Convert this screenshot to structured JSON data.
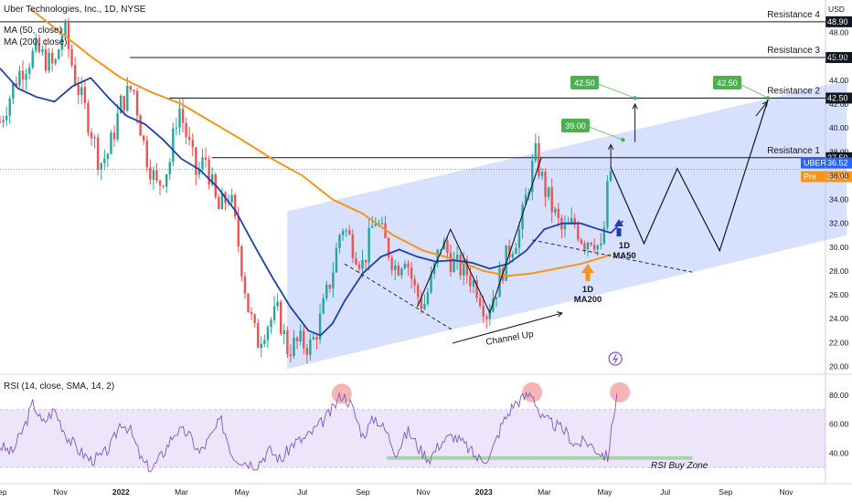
{
  "header": {
    "title": "Uber Technologies, Inc., 1D, NYSE",
    "ma50_label": "MA (50, close)",
    "ma200_label": "MA (200, close)",
    "currency": "USD"
  },
  "chart_data": {
    "type": "candlestick",
    "grid": false,
    "price_axis": {
      "ticks": [
        20.0,
        22.0,
        24.0,
        26.0,
        28.0,
        30.0,
        32.0,
        34.0,
        36.0,
        38.0,
        40.0,
        42.0,
        44.0,
        46.0,
        48.0
      ],
      "tick_labels": [
        "20.00",
        "22.00",
        "24.00",
        "26.00",
        "28.00",
        "30.00",
        "32.00",
        "34.00",
        "36.00",
        "38.00",
        "40.00",
        "42.00",
        "44.00",
        "46.00",
        "48.00"
      ],
      "ylim": [
        19.5,
        49.5
      ]
    },
    "rsi_axis": {
      "ticks": [
        40,
        60,
        80
      ],
      "tick_labels": [
        "40.00",
        "60.00",
        "80.00"
      ],
      "ylim": [
        25,
        92
      ]
    },
    "x_axis": {
      "labels": [
        "Sep",
        "Nov",
        "2022",
        "Mar",
        "May",
        "Jul",
        "Sep",
        "Nov",
        "2023",
        "Mar",
        "May",
        "Jul",
        "Sep",
        "Nov"
      ],
      "months": [
        0,
        2,
        4,
        6,
        8,
        10,
        12,
        14,
        16,
        18,
        20,
        22,
        24,
        26
      ],
      "xlim": [
        0,
        27.3
      ]
    },
    "price_path": [
      [
        0.0,
        40.5
      ],
      [
        0.6,
        44.5
      ],
      [
        1.2,
        46.5
      ],
      [
        1.8,
        45.0
      ],
      [
        2.1,
        48.5
      ],
      [
        2.5,
        44.0
      ],
      [
        3.0,
        40.0
      ],
      [
        3.3,
        37.0
      ],
      [
        3.6,
        38.0
      ],
      [
        4.0,
        42.0
      ],
      [
        4.4,
        43.5
      ],
      [
        4.8,
        38.0
      ],
      [
        5.2,
        35.0
      ],
      [
        5.6,
        37.0
      ],
      [
        5.9,
        42.0
      ],
      [
        6.2,
        39.0
      ],
      [
        6.5,
        36.0
      ],
      [
        6.8,
        37.5
      ],
      [
        7.2,
        33.0
      ],
      [
        7.6,
        34.5
      ],
      [
        7.9,
        30.0
      ],
      [
        8.2,
        25.0
      ],
      [
        8.5,
        22.0
      ],
      [
        8.8,
        23.5
      ],
      [
        9.2,
        24.5
      ],
      [
        9.5,
        21.5
      ],
      [
        9.9,
        22.0
      ],
      [
        10.3,
        21.7
      ],
      [
        10.6,
        24.0
      ],
      [
        11.0,
        28.0
      ],
      [
        11.3,
        32.0
      ],
      [
        11.6,
        30.5
      ],
      [
        12.0,
        28.5
      ],
      [
        12.4,
        32.5
      ],
      [
        12.8,
        30.0
      ],
      [
        13.1,
        28.2
      ],
      [
        13.4,
        29.5
      ],
      [
        13.7,
        26.5
      ],
      [
        14.0,
        25.0
      ],
      [
        14.3,
        27.5
      ],
      [
        14.6,
        30.5
      ],
      [
        15.0,
        28.5
      ],
      [
        15.4,
        28.0
      ],
      [
        15.8,
        26.5
      ],
      [
        16.1,
        24.5
      ],
      [
        16.4,
        26.5
      ],
      [
        16.8,
        29.5
      ],
      [
        17.2,
        31.5
      ],
      [
        17.5,
        35.5
      ],
      [
        17.7,
        37.8
      ],
      [
        18.0,
        35.0
      ],
      [
        18.3,
        33.0
      ],
      [
        18.6,
        31.2
      ],
      [
        19.0,
        32.0
      ],
      [
        19.3,
        30.5
      ],
      [
        19.6,
        31.0
      ],
      [
        19.9,
        29.4
      ],
      [
        20.1,
        35.0
      ],
      [
        20.2,
        36.5
      ]
    ],
    "ma50_path": [
      [
        0.0,
        45.0
      ],
      [
        0.6,
        43.3
      ],
      [
        1.2,
        42.6
      ],
      [
        1.8,
        42.2
      ],
      [
        2.4,
        43.5
      ],
      [
        3.0,
        44.2
      ],
      [
        3.6,
        42.5
      ],
      [
        4.2,
        41.0
      ],
      [
        4.8,
        40.3
      ],
      [
        5.4,
        39.0
      ],
      [
        6.0,
        37.4
      ],
      [
        6.6,
        36.5
      ],
      [
        7.2,
        35.0
      ],
      [
        7.8,
        33.0
      ],
      [
        8.4,
        30.2
      ],
      [
        9.0,
        27.5
      ],
      [
        9.6,
        25.0
      ],
      [
        10.2,
        23.0
      ],
      [
        10.6,
        22.6
      ],
      [
        11.0,
        23.6
      ],
      [
        11.4,
        25.5
      ],
      [
        12.0,
        27.8
      ],
      [
        12.6,
        29.2
      ],
      [
        13.2,
        29.8
      ],
      [
        13.8,
        29.2
      ],
      [
        14.4,
        28.8
      ],
      [
        15.0,
        28.9
      ],
      [
        15.6,
        28.7
      ],
      [
        16.2,
        28.2
      ],
      [
        16.8,
        28.6
      ],
      [
        17.4,
        29.7
      ],
      [
        18.0,
        31.5
      ],
      [
        18.6,
        32.0
      ],
      [
        19.2,
        32.0
      ],
      [
        19.8,
        31.5
      ],
      [
        20.2,
        31.2
      ],
      [
        20.6,
        32.2
      ]
    ],
    "ma200_path": [
      [
        1.0,
        50.0
      ],
      [
        2.0,
        48.0
      ],
      [
        3.0,
        46.0
      ],
      [
        4.0,
        44.2
      ],
      [
        5.0,
        43.0
      ],
      [
        6.0,
        42.0
      ],
      [
        7.0,
        40.5
      ],
      [
        8.0,
        39.0
      ],
      [
        9.0,
        37.4
      ],
      [
        10.0,
        36.0
      ],
      [
        11.0,
        34.0
      ],
      [
        12.0,
        32.8
      ],
      [
        13.0,
        31.0
      ],
      [
        14.0,
        29.7
      ],
      [
        15.0,
        29.0
      ],
      [
        16.0,
        28.0
      ],
      [
        16.8,
        27.6
      ],
      [
        17.6,
        27.8
      ],
      [
        18.4,
        28.2
      ],
      [
        19.2,
        28.6
      ],
      [
        20.0,
        29.2
      ],
      [
        20.2,
        29.4
      ]
    ],
    "rsi_path": [
      [
        0.0,
        45
      ],
      [
        0.4,
        40
      ],
      [
        0.8,
        58
      ],
      [
        1.1,
        75
      ],
      [
        1.4,
        60
      ],
      [
        1.8,
        70
      ],
      [
        2.2,
        52
      ],
      [
        2.6,
        42
      ],
      [
        3.0,
        35
      ],
      [
        3.4,
        38
      ],
      [
        3.7,
        46
      ],
      [
        4.0,
        62
      ],
      [
        4.3,
        56
      ],
      [
        4.7,
        34
      ],
      [
        5.0,
        28
      ],
      [
        5.4,
        40
      ],
      [
        5.8,
        55
      ],
      [
        6.2,
        54
      ],
      [
        6.6,
        40
      ],
      [
        7.0,
        52
      ],
      [
        7.3,
        63
      ],
      [
        7.7,
        38
      ],
      [
        8.1,
        34
      ],
      [
        8.5,
        32
      ],
      [
        8.9,
        42
      ],
      [
        9.3,
        35
      ],
      [
        9.7,
        47
      ],
      [
        10.1,
        50
      ],
      [
        10.6,
        60
      ],
      [
        11.0,
        70
      ],
      [
        11.3,
        81
      ],
      [
        11.6,
        74
      ],
      [
        12.0,
        52
      ],
      [
        12.4,
        65
      ],
      [
        12.8,
        54
      ],
      [
        13.1,
        40
      ],
      [
        13.5,
        55
      ],
      [
        13.9,
        42
      ],
      [
        14.2,
        36
      ],
      [
        14.6,
        48
      ],
      [
        15.0,
        52
      ],
      [
        15.4,
        45
      ],
      [
        15.8,
        36
      ],
      [
        16.2,
        37
      ],
      [
        16.6,
        60
      ],
      [
        17.0,
        74
      ],
      [
        17.3,
        78
      ],
      [
        17.6,
        82
      ],
      [
        17.9,
        64
      ],
      [
        18.3,
        60
      ],
      [
        18.7,
        55
      ],
      [
        19.0,
        46
      ],
      [
        19.4,
        48
      ],
      [
        19.8,
        41
      ],
      [
        20.1,
        37
      ],
      [
        20.4,
        82
      ]
    ],
    "channel": {
      "upper": [
        [
          9.5,
          33.0
        ],
        [
          28.0,
          44.0
        ]
      ],
      "lower": [
        [
          9.5,
          19.8
        ],
        [
          28.0,
          31.0
        ]
      ]
    },
    "resistances": [
      {
        "label": "Resistance 4",
        "value": 48.9,
        "tag": "48.90",
        "from_x": 0.0
      },
      {
        "label": "Resistance 3",
        "value": 45.9,
        "tag": "45.90",
        "from_x": 4.3
      },
      {
        "label": "Resistance 2",
        "value": 42.5,
        "tag": "42.50",
        "from_x": 5.6
      },
      {
        "label": "Resistance 1",
        "value": 37.5,
        "tag": "37.50",
        "from_x": 7.0
      }
    ],
    "dashed_lines": [
      {
        "from": [
          11.4,
          28.6
        ],
        "to": [
          15.0,
          23.0
        ]
      },
      {
        "from": [
          17.6,
          30.6
        ],
        "to": [
          22.9,
          27.9
        ]
      }
    ],
    "projection": [
      [
        20.2,
        36.7
      ],
      [
        21.3,
        30.3
      ],
      [
        22.4,
        36.6
      ],
      [
        23.8,
        29.7
      ],
      [
        25.4,
        42.4
      ]
    ],
    "zigzag": [
      [
        13.8,
        25.0
      ],
      [
        14.9,
        31.5
      ],
      [
        16.2,
        24.5
      ],
      [
        17.9,
        37.5
      ]
    ],
    "targets": [
      {
        "label": "42.50",
        "value": 42.5,
        "x": 21.0
      },
      {
        "label": "39.00",
        "value": 39.0,
        "x": 20.6
      },
      {
        "label": "42.50",
        "value": 42.5,
        "x": 25.4
      }
    ],
    "price_tags": [
      {
        "symbol": "UBER",
        "value_label": "36.52",
        "value": 36.52,
        "color": "#2962ff"
      },
      {
        "symbol": "Pre",
        "value_label": "36.45",
        "value": 36.45,
        "color": "#f7941d"
      }
    ],
    "annotations": {
      "channel_up": "Channel Up",
      "ma50_tf": "1D",
      "ma50_name": "MA50",
      "ma200_tf": "1D",
      "ma200_name": "MA200",
      "rsi_zone": "RSI Buy Zone"
    },
    "rsi_label": "RSI (14, close, SMA, 14, 2)",
    "colors": {
      "ma50": "#1e40af",
      "ma200": "#f7941d",
      "channel": "#c9d6fb",
      "rsi_band": "#ede5fa",
      "rsi_line": "#7e57c2",
      "candle_up": "#26a69a",
      "candle_down": "#ef5350",
      "highlight": "#f4a3a3",
      "buy_zone": "#a5d6a7"
    }
  }
}
